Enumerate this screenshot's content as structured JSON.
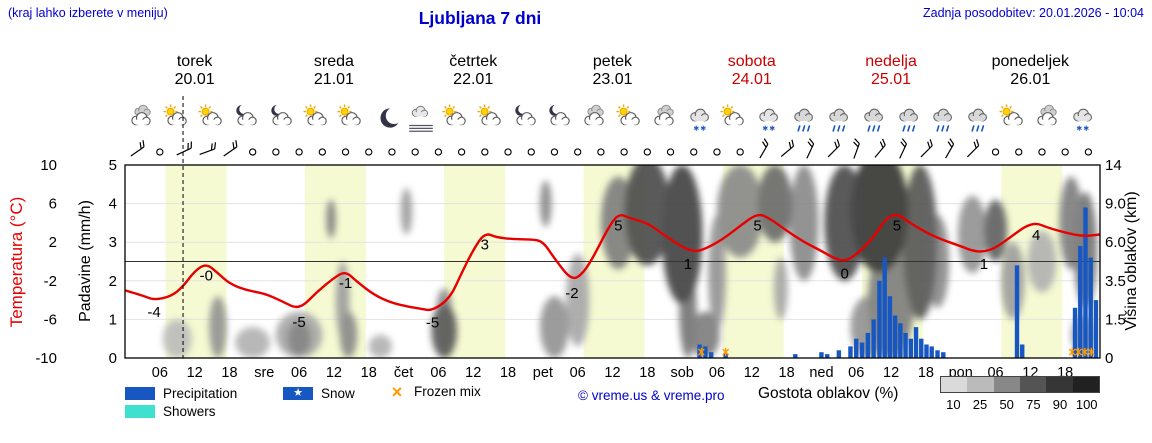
{
  "header": {
    "hint": "(kraj lahko izberete v meniju)",
    "title": "Ljubljana 7 dni",
    "updated": "Zadnja posodobitev: 20.01.2026 - 10:04"
  },
  "colors": {
    "accent_blue": "#0000cd",
    "temp_red": "#e80000",
    "weekend_red": "#cc0000",
    "precip_blue": "#1757c2",
    "showers_cyan": "#40e0d0",
    "frozen_orange": "#ff9900",
    "day_band": "#f5fad2"
  },
  "days": [
    {
      "name": "torek",
      "date": "20.01",
      "weekend": false
    },
    {
      "name": "sreda",
      "date": "21.01",
      "weekend": false
    },
    {
      "name": "četrtek",
      "date": "22.01",
      "weekend": false
    },
    {
      "name": "petek",
      "date": "23.01",
      "weekend": false
    },
    {
      "name": "sobota",
      "date": "24.01",
      "weekend": true
    },
    {
      "name": "nedelja",
      "date": "25.01",
      "weekend": true
    },
    {
      "name": "ponedeljek",
      "date": "26.01",
      "weekend": false
    }
  ],
  "icon_row": [
    "cloud",
    "sun-cloud",
    "sun-cloud",
    "moon-cloud",
    "moon-cloud",
    "sun-cloud",
    "sun-cloud",
    "moon",
    "fog",
    "sun-cloud",
    "sun-cloud",
    "moon-cloud",
    "moon-cloud",
    "cloud",
    "sun-cloud",
    "cloud",
    "snow-cloud",
    "sun-cloud",
    "snow-cloud",
    "rain-cloud",
    "rain-cloud",
    "rain-cloud",
    "rain-cloud",
    "rain-cloud",
    "rain-cloud",
    "sun-cloud",
    "cloud",
    "snow-cloud"
  ],
  "wind_row": [
    "b-35",
    "o",
    "b-25",
    "b-20",
    "b-35",
    "o",
    "o",
    "o",
    "o",
    "o",
    "o",
    "o",
    "o",
    "o",
    "o",
    "o",
    "o",
    "o",
    "o",
    "o",
    "o",
    "o",
    "o",
    "o",
    "o",
    "o",
    "o",
    "b-60",
    "b-40",
    "b-65",
    "b-45",
    "b-70",
    "b-50",
    "b-65",
    "b-45",
    "b-60",
    "b-45",
    "o",
    "o",
    "o",
    "o",
    "o"
  ],
  "legend": {
    "items": [
      {
        "key": "precipitation",
        "label": "Precipitation",
        "type": "rect",
        "color": "#1757c2"
      },
      {
        "key": "snow",
        "label": "Snow",
        "type": "rect-star",
        "color": "#1757c2",
        "star": "★"
      },
      {
        "key": "frozen-mix",
        "label": "Frozen mix",
        "type": "cross",
        "color": "#ff9900",
        "glyph": "×"
      },
      {
        "key": "showers",
        "label": "Showers",
        "type": "rect",
        "color": "#40e0d0"
      }
    ],
    "copyright": "© vreme.us & vreme.pro"
  },
  "cloud_scale": {
    "label": "Gostota oblakov (%)",
    "ticks": [
      "10",
      "25",
      "50",
      "75",
      "90",
      "100"
    ]
  },
  "chart_data": {
    "type": "line",
    "title": "Ljubljana 7 dni",
    "x_unit": "hours since 20.01 00:00",
    "x_range": [
      0,
      168
    ],
    "now_hour": 10,
    "day_band_hours": [
      7,
      17.5
    ],
    "temp_axis": {
      "label": "Temperatura (°C)",
      "ticks": [
        "10",
        "6",
        "2",
        "-2",
        "-6",
        "-10"
      ],
      "range": [
        -10,
        10
      ]
    },
    "precip_axis": {
      "label": "Padavine (mm/h)",
      "ticks": [
        "5",
        "4",
        "3",
        "2",
        "1",
        "0"
      ],
      "range": [
        0,
        5
      ]
    },
    "cloud_axis": {
      "label": "Višina oblakov (km)",
      "ticks": [
        "14",
        "9.0",
        "6.0",
        "3.5",
        "1.5",
        "0"
      ]
    },
    "freezing_level_c": 0,
    "temperature": {
      "name": "Temperatura",
      "color": "#e80000",
      "points": [
        [
          0,
          -3
        ],
        [
          3,
          -3.5
        ],
        [
          5,
          -4
        ],
        [
          8,
          -3.6
        ],
        [
          10,
          -2.6
        ],
        [
          12,
          -1
        ],
        [
          14,
          -0.2
        ],
        [
          16,
          -1.2
        ],
        [
          18,
          -2.3
        ],
        [
          21,
          -3
        ],
        [
          24,
          -3.3
        ],
        [
          27,
          -4.1
        ],
        [
          30,
          -5
        ],
        [
          33,
          -3.2
        ],
        [
          36,
          -1.7
        ],
        [
          38,
          -1
        ],
        [
          40,
          -2.1
        ],
        [
          43,
          -3.5
        ],
        [
          46,
          -4.3
        ],
        [
          49,
          -4.7
        ],
        [
          51,
          -4.9
        ],
        [
          53,
          -5.1
        ],
        [
          56,
          -3.8
        ],
        [
          58,
          -1.2
        ],
        [
          60,
          1.2
        ],
        [
          62,
          3
        ],
        [
          64,
          2.5
        ],
        [
          67,
          2.3
        ],
        [
          70,
          2.3
        ],
        [
          72,
          2.1
        ],
        [
          74,
          0.3
        ],
        [
          77,
          -2
        ],
        [
          79,
          -1.2
        ],
        [
          81,
          0.8
        ],
        [
          83,
          3.2
        ],
        [
          85,
          5
        ],
        [
          87,
          4.5
        ],
        [
          90,
          4
        ],
        [
          93,
          2.7
        ],
        [
          96,
          1.5
        ],
        [
          98,
          1
        ],
        [
          100,
          1.3
        ],
        [
          103,
          2.3
        ],
        [
          106,
          3.7
        ],
        [
          109,
          5
        ],
        [
          111,
          4.5
        ],
        [
          114,
          3.2
        ],
        [
          117,
          2
        ],
        [
          120,
          1.1
        ],
        [
          122,
          0.4
        ],
        [
          124,
          0
        ],
        [
          126,
          0.7
        ],
        [
          129,
          2.5
        ],
        [
          131,
          4.4
        ],
        [
          133,
          5
        ],
        [
          135,
          4.1
        ],
        [
          138,
          3
        ],
        [
          141,
          2.2
        ],
        [
          144,
          1.6
        ],
        [
          146,
          1.1
        ],
        [
          148,
          1
        ],
        [
          150,
          1.4
        ],
        [
          153,
          2.7
        ],
        [
          155,
          3.6
        ],
        [
          157,
          4
        ],
        [
          159,
          3.5
        ],
        [
          162,
          3
        ],
        [
          165,
          2.6
        ],
        [
          168,
          2.8
        ]
      ]
    },
    "temp_labels": [
      [
        5,
        -4,
        "-4"
      ],
      [
        14,
        -0.2,
        "-0"
      ],
      [
        30,
        -5,
        "-5"
      ],
      [
        38,
        -1,
        "-1"
      ],
      [
        53,
        -5.1,
        "-5"
      ],
      [
        62,
        3,
        "3"
      ],
      [
        77,
        -2,
        "-2"
      ],
      [
        85,
        5,
        "5"
      ],
      [
        97,
        1,
        "1"
      ],
      [
        109,
        5,
        "5"
      ],
      [
        124,
        0,
        "0"
      ],
      [
        133,
        5,
        "5"
      ],
      [
        148,
        1,
        "1"
      ],
      [
        157,
        4,
        "4"
      ]
    ],
    "precipitation": {
      "name": "Precipitation",
      "color": "#1757c2",
      "bars": [
        [
          99,
          0.35
        ],
        [
          100,
          0.3
        ],
        [
          101,
          0.15
        ],
        [
          103.5,
          0.12
        ],
        [
          115.5,
          0.1
        ],
        [
          120,
          0.15
        ],
        [
          121,
          0.1
        ],
        [
          123,
          0.2
        ],
        [
          125,
          0.3
        ],
        [
          126,
          0.5
        ],
        [
          127,
          0.4
        ],
        [
          128,
          0.65
        ],
        [
          129,
          1
        ],
        [
          130,
          2
        ],
        [
          130.9,
          2.6
        ],
        [
          131.8,
          1.6
        ],
        [
          132.7,
          1.1
        ],
        [
          133.6,
          0.9
        ],
        [
          134.5,
          0.65
        ],
        [
          135.4,
          0.5
        ],
        [
          136.3,
          0.8
        ],
        [
          137.2,
          0.5
        ],
        [
          138.1,
          0.35
        ],
        [
          139,
          0.3
        ],
        [
          140,
          0.2
        ],
        [
          141,
          0.15
        ],
        [
          153.7,
          2.4
        ],
        [
          154.6,
          0.35
        ],
        [
          163.7,
          1.3
        ],
        [
          164.6,
          2.9
        ],
        [
          165.5,
          3.9
        ],
        [
          166.4,
          2.6
        ],
        [
          167.3,
          1.5
        ]
      ]
    },
    "frozen_mix_hours": [
      99.3,
      103.5,
      163.2,
      164.3,
      165.4,
      166.5
    ],
    "clouds": {
      "name": "Gostota oblakov",
      "blobs": [
        [
          9,
          0.5,
          2.5,
          0.5,
          25
        ],
        [
          16,
          0.8,
          1.5,
          0.8,
          45
        ],
        [
          22,
          0.4,
          3,
          0.4,
          30
        ],
        [
          30,
          0.6,
          4,
          0.6,
          35
        ],
        [
          30,
          0.5,
          2,
          0.45,
          55
        ],
        [
          35.5,
          3.6,
          0.8,
          0.5,
          55
        ],
        [
          37.5,
          1.5,
          1.2,
          1,
          40
        ],
        [
          38.5,
          0.6,
          1.5,
          0.6,
          50
        ],
        [
          44,
          0.3,
          2,
          0.3,
          30
        ],
        [
          48.5,
          3.8,
          1,
          0.6,
          40
        ],
        [
          55,
          0.7,
          2.2,
          0.7,
          75
        ],
        [
          55,
          1.3,
          1.3,
          0.5,
          50
        ],
        [
          72.5,
          4,
          1,
          0.6,
          50
        ],
        [
          74,
          0.8,
          2.5,
          0.8,
          45
        ],
        [
          78,
          1.5,
          2,
          1.2,
          35
        ],
        [
          85,
          3.5,
          3,
          1.2,
          55
        ],
        [
          90,
          3.8,
          4,
          1.4,
          80
        ],
        [
          96,
          3.2,
          3.5,
          1.8,
          85
        ],
        [
          97,
          1.2,
          1.5,
          1.2,
          60
        ],
        [
          100,
          0.6,
          2.5,
          0.6,
          55
        ],
        [
          102,
          2.2,
          1.5,
          1.5,
          45
        ],
        [
          106,
          3.8,
          4,
          1.2,
          50
        ],
        [
          112,
          4,
          3,
          1,
          65
        ],
        [
          113,
          1.8,
          1.2,
          0.8,
          35
        ],
        [
          117,
          3.5,
          2.5,
          1.5,
          50
        ],
        [
          124,
          3.5,
          3.5,
          1.5,
          80
        ],
        [
          128,
          0.8,
          3,
          0.8,
          45
        ],
        [
          130,
          3.8,
          5,
          1.6,
          90
        ],
        [
          132,
          1.5,
          4,
          1.5,
          55
        ],
        [
          137,
          3,
          3,
          2,
          75
        ],
        [
          140,
          2.5,
          2,
          1.2,
          50
        ],
        [
          146,
          3.2,
          2.5,
          1,
          45
        ],
        [
          150,
          3.3,
          2,
          0.8,
          70
        ],
        [
          153,
          2,
          2,
          1,
          40
        ],
        [
          158,
          2.5,
          2.5,
          0.8,
          30
        ],
        [
          163,
          3.5,
          2,
          1.2,
          55
        ],
        [
          165.5,
          2.8,
          2,
          1.5,
          60
        ],
        [
          165,
          0.6,
          2,
          0.5,
          40
        ]
      ]
    },
    "x_ticks": [
      [
        6,
        "06"
      ],
      [
        12,
        "12"
      ],
      [
        18,
        "18"
      ],
      [
        24,
        "sre"
      ],
      [
        30,
        "06"
      ],
      [
        36,
        "12"
      ],
      [
        42,
        "18"
      ],
      [
        48,
        "čet"
      ],
      [
        54,
        "06"
      ],
      [
        60,
        "12"
      ],
      [
        66,
        "18"
      ],
      [
        72,
        "pet"
      ],
      [
        78,
        "06"
      ],
      [
        84,
        "12"
      ],
      [
        90,
        "18"
      ],
      [
        96,
        "sob"
      ],
      [
        102,
        "06"
      ],
      [
        108,
        "12"
      ],
      [
        114,
        "18"
      ],
      [
        120,
        "ned"
      ],
      [
        126,
        "06"
      ],
      [
        132,
        "12"
      ],
      [
        138,
        "18"
      ],
      [
        144,
        "pon"
      ],
      [
        150,
        "06"
      ],
      [
        156,
        "12"
      ],
      [
        162,
        "18"
      ]
    ]
  }
}
